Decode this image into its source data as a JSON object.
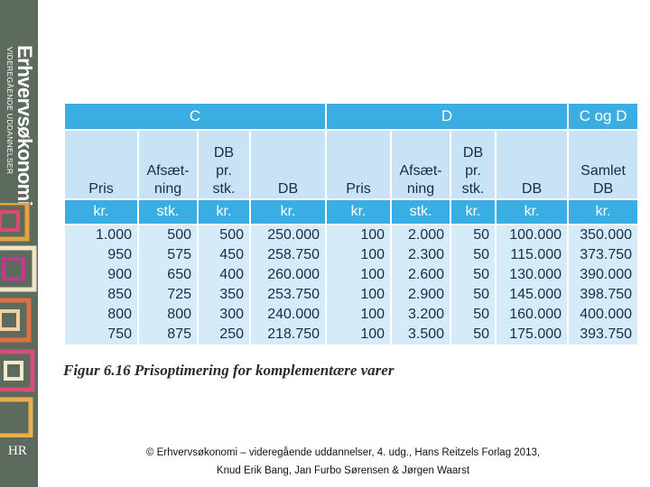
{
  "sidebar": {
    "brand": "Erhvervsøkonomi",
    "subtitle": "VIDEREGÅENDE UDDANNELSER",
    "logo": "HR"
  },
  "table": {
    "groups": [
      {
        "label": "C",
        "span": 4
      },
      {
        "label": "D",
        "span": 4
      },
      {
        "label": "C og D",
        "span": 1
      }
    ],
    "headers": [
      "Pris",
      "Afsæt-\nning",
      "DB\npr.\nstk.",
      "DB",
      "Pris",
      "Afsæt-\nning",
      "DB\npr.\nstk.",
      "DB",
      "Samlet\nDB"
    ],
    "units": [
      "kr.",
      "stk.",
      "kr.",
      "kr.",
      "kr.",
      "stk.",
      "kr.",
      "kr.",
      "kr."
    ],
    "rows": [
      [
        "1.000",
        "500",
        "500",
        "250.000",
        "100",
        "2.000",
        "50",
        "100.000",
        "350.000"
      ],
      [
        "950",
        "575",
        "450",
        "258.750",
        "100",
        "2.300",
        "50",
        "115.000",
        "373.750"
      ],
      [
        "900",
        "650",
        "400",
        "260.000",
        "100",
        "2.600",
        "50",
        "130.000",
        "390.000"
      ],
      [
        "850",
        "725",
        "350",
        "253.750",
        "100",
        "2.900",
        "50",
        "145.000",
        "398.750"
      ],
      [
        "800",
        "800",
        "300",
        "240.000",
        "100",
        "3.200",
        "50",
        "160.000",
        "400.000"
      ],
      [
        "750",
        "875",
        "250",
        "218.750",
        "100",
        "3.500",
        "50",
        "175.000",
        "393.750"
      ]
    ]
  },
  "caption": "Figur 6.16 Prisoptimering for komplementære varer",
  "footer": [
    "© Erhvervsøkonomi – videregående uddannelser, 4. udg., Hans Reitzels Forlag 2013,",
    "Knud Erik Bang, Jan Furbo Sørensen & Jørgen Waarst"
  ]
}
